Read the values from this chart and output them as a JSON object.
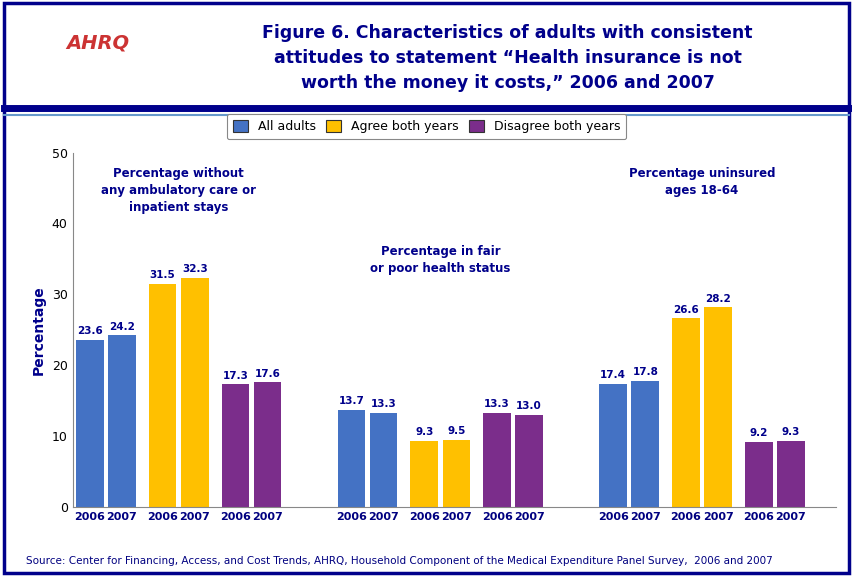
{
  "title_line1": "Figure 6. Characteristics of adults with consistent",
  "title_line2": "attitudes to statement “Health insurance is not",
  "title_line3": "worth the money it costs,” 2006 and 2007",
  "ylabel": "Percentage",
  "source": "Source: Center for Financing, Access, and Cost Trends, AHRQ, Household Component of the Medical Expenditure Panel Survey,  2006 and 2007",
  "ylim": [
    0,
    50
  ],
  "yticks": [
    0,
    10,
    20,
    30,
    40,
    50
  ],
  "colors": {
    "all_adults": "#4472C4",
    "agree": "#FFC000",
    "disagree": "#7B2D8B"
  },
  "legend_labels": [
    "All adults",
    "Agree both years",
    "Disagree both years"
  ],
  "groups": [
    {
      "label": "Percentage without\nany ambulatory care or\ninpatient stays",
      "bars": [
        {
          "year": "2006",
          "type": "all_adults",
          "value": 23.6
        },
        {
          "year": "2007",
          "type": "all_adults",
          "value": 24.2
        },
        {
          "year": "2006",
          "type": "agree",
          "value": 31.5
        },
        {
          "year": "2007",
          "type": "agree",
          "value": 32.3
        },
        {
          "year": "2006",
          "type": "disagree",
          "value": 17.3
        },
        {
          "year": "2007",
          "type": "disagree",
          "value": 17.6
        }
      ]
    },
    {
      "label": "Percentage in fair\nor poor health status",
      "bars": [
        {
          "year": "2006",
          "type": "all_adults",
          "value": 13.7
        },
        {
          "year": "2007",
          "type": "all_adults",
          "value": 13.3
        },
        {
          "year": "2006",
          "type": "agree",
          "value": 9.3
        },
        {
          "year": "2007",
          "type": "agree",
          "value": 9.5
        },
        {
          "year": "2006",
          "type": "disagree",
          "value": 13.3
        },
        {
          "year": "2007",
          "type": "disagree",
          "value": 13.0
        }
      ]
    },
    {
      "label": "Percentage uninsured\nages 18-64",
      "bars": [
        {
          "year": "2006",
          "type": "all_adults",
          "value": 17.4
        },
        {
          "year": "2007",
          "type": "all_adults",
          "value": 17.8
        },
        {
          "year": "2006",
          "type": "agree",
          "value": 26.6
        },
        {
          "year": "2007",
          "type": "agree",
          "value": 28.2
        },
        {
          "year": "2006",
          "type": "disagree",
          "value": 9.2
        },
        {
          "year": "2007",
          "type": "disagree",
          "value": 9.3
        }
      ]
    }
  ],
  "background_color": "#FFFFFF",
  "border_color_dark": "#00008B",
  "border_color_light": "#6699CC",
  "title_color": "#00008B",
  "axis_label_color": "#00008B",
  "bar_label_color": "#00008B",
  "annotation_color": "#00008B",
  "source_color": "#000080",
  "header_border_color": "#0000CD"
}
